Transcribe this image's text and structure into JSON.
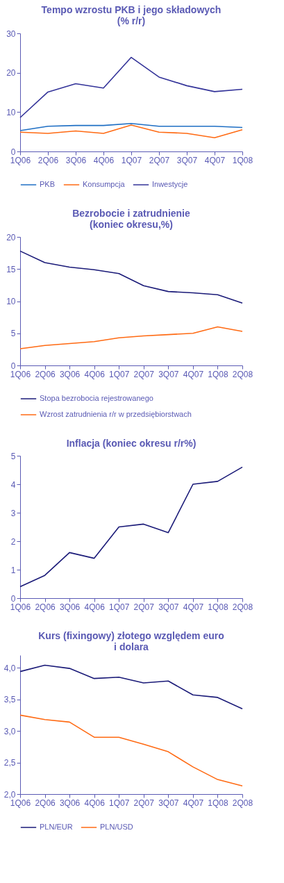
{
  "chart_data": [
    {
      "type": "line",
      "title": "Tempo wzrostu PKB i jego składowych\n(% r/r)",
      "categories": [
        "1Q06",
        "2Q06",
        "3Q06",
        "4Q06",
        "1Q07",
        "2Q07",
        "3Q07",
        "4Q07",
        "1Q08"
      ],
      "series": [
        {
          "name": "PKB",
          "color": "#1f6fc4",
          "values": [
            5.3,
            6.4,
            6.6,
            6.6,
            7.1,
            6.4,
            6.4,
            6.4,
            6.1
          ]
        },
        {
          "name": "Konsumpcja",
          "color": "#ff6a13",
          "values": [
            4.9,
            4.6,
            5.2,
            4.6,
            6.7,
            4.9,
            4.6,
            3.5,
            5.5
          ]
        },
        {
          "name": "Inwestycje",
          "color": "#333399",
          "values": [
            8.6,
            15.1,
            17.2,
            16.1,
            23.9,
            18.9,
            16.7,
            15.2,
            15.8
          ]
        }
      ],
      "ylim": [
        0,
        30
      ],
      "yticks": [
        0,
        10,
        20,
        30
      ],
      "grid": false,
      "legend": "bottom"
    },
    {
      "type": "line",
      "title": "Bezrobocie i zatrudnienie\n(koniec okresu,%)",
      "categories": [
        "1Q06",
        "2Q06",
        "3Q06",
        "4Q06",
        "1Q07",
        "2Q07",
        "3Q07",
        "4Q07",
        "1Q08",
        "2Q08"
      ],
      "series": [
        {
          "name": "Stopa bezrobocia rejestrowanego",
          "color": "#1a1a78",
          "values": [
            17.8,
            16.0,
            15.3,
            14.9,
            14.3,
            12.4,
            11.5,
            11.3,
            11.0,
            9.7
          ]
        },
        {
          "name": "Wzrost zatrudnienia r/r w przedsiębiorstwach",
          "color": "#ff6a13",
          "values": [
            2.6,
            3.1,
            3.4,
            3.7,
            4.3,
            4.6,
            4.8,
            5.0,
            6.0,
            5.3
          ]
        }
      ],
      "ylim": [
        0,
        20
      ],
      "yticks": [
        0,
        5,
        10,
        15,
        20
      ],
      "grid": false,
      "legend": "bottom"
    },
    {
      "type": "line",
      "title": "Inflacja (koniec okresu r/r%)",
      "categories": [
        "1Q06",
        "2Q06",
        "3Q06",
        "4Q06",
        "1Q07",
        "2Q07",
        "3Q07",
        "4Q07",
        "1Q08",
        "2Q08"
      ],
      "series": [
        {
          "color": "#1a1a78",
          "values": [
            0.4,
            0.8,
            1.6,
            1.4,
            2.5,
            2.6,
            2.3,
            4.0,
            4.1,
            4.6
          ]
        }
      ],
      "ylim": [
        0,
        5
      ],
      "yticks": [
        0,
        1,
        2,
        3,
        4,
        5
      ],
      "grid": false
    },
    {
      "type": "line",
      "title": "Kurs (fixingowy) złotego względem euro\ni dolara",
      "categories": [
        "1Q06",
        "2Q06",
        "3Q06",
        "4Q06",
        "1Q07",
        "2Q07",
        "3Q07",
        "4Q07",
        "1Q08",
        "2Q08"
      ],
      "series": [
        {
          "name": "PLN/EUR",
          "color": "#1a1a78",
          "values": [
            3.94,
            4.04,
            3.99,
            3.83,
            3.85,
            3.76,
            3.79,
            3.57,
            3.53,
            3.35
          ]
        },
        {
          "name": "PLN/USD",
          "color": "#ff6a13",
          "values": [
            3.25,
            3.18,
            3.14,
            2.9,
            2.9,
            2.79,
            2.67,
            2.43,
            2.23,
            2.13
          ]
        }
      ],
      "ylim": [
        2.0,
        4.2
      ],
      "yticks": [
        {
          "value": 2.0,
          "label": "2,0"
        },
        {
          "value": 2.5,
          "label": "2,5"
        },
        {
          "value": 3.0,
          "label": "3,0"
        },
        {
          "value": 3.5,
          "label": "3,5"
        },
        {
          "value": 4.0,
          "label": "4,0"
        }
      ],
      "grid": false,
      "legend": "bottom"
    }
  ]
}
